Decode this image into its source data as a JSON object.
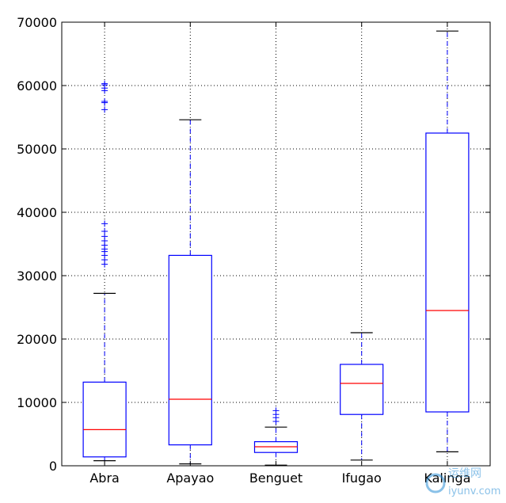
{
  "chart_data": {
    "type": "box",
    "categories": [
      "Abra",
      "Apayao",
      "Benguet",
      "Ifugao",
      "Kalinga"
    ],
    "ylim": [
      0,
      70000
    ],
    "yticks": [
      0,
      10000,
      20000,
      30000,
      40000,
      50000,
      60000,
      70000
    ],
    "grid": true,
    "title": "",
    "xlabel": "",
    "ylabel": "",
    "series": [
      {
        "category": "Abra",
        "whisker_low": 800,
        "q1": 1400,
        "median": 5700,
        "q3": 13200,
        "whisker_high": 27200,
        "outliers": [
          31800,
          32500,
          33200,
          33800,
          34200,
          34800,
          35500,
          36200,
          37000,
          38200,
          56200,
          57300,
          57500,
          59200,
          59600,
          60100,
          60300
        ]
      },
      {
        "category": "Apayao",
        "whisker_low": 300,
        "q1": 3300,
        "median": 10500,
        "q3": 33200,
        "whisker_high": 54600,
        "outliers": []
      },
      {
        "category": "Benguet",
        "whisker_low": 100,
        "q1": 2100,
        "median": 3000,
        "q3": 3800,
        "whisker_high": 6100,
        "outliers": [
          7000,
          7600,
          8100,
          8700
        ]
      },
      {
        "category": "Ifugao",
        "whisker_low": 900,
        "q1": 8100,
        "median": 13000,
        "q3": 16000,
        "whisker_high": 21000,
        "outliers": []
      },
      {
        "category": "Kalinga",
        "whisker_low": 2200,
        "q1": 8500,
        "median": 24500,
        "q3": 52500,
        "whisker_high": 68600,
        "outliers": []
      }
    ],
    "colors": {
      "box": "#0000ff",
      "median": "#ff0000",
      "whisker": "#0000ff",
      "cap": "#000000",
      "outlier": "#0000ff",
      "grid": "#000000"
    }
  },
  "watermark": {
    "line1": "运维网",
    "line2": "iyunv.com"
  }
}
